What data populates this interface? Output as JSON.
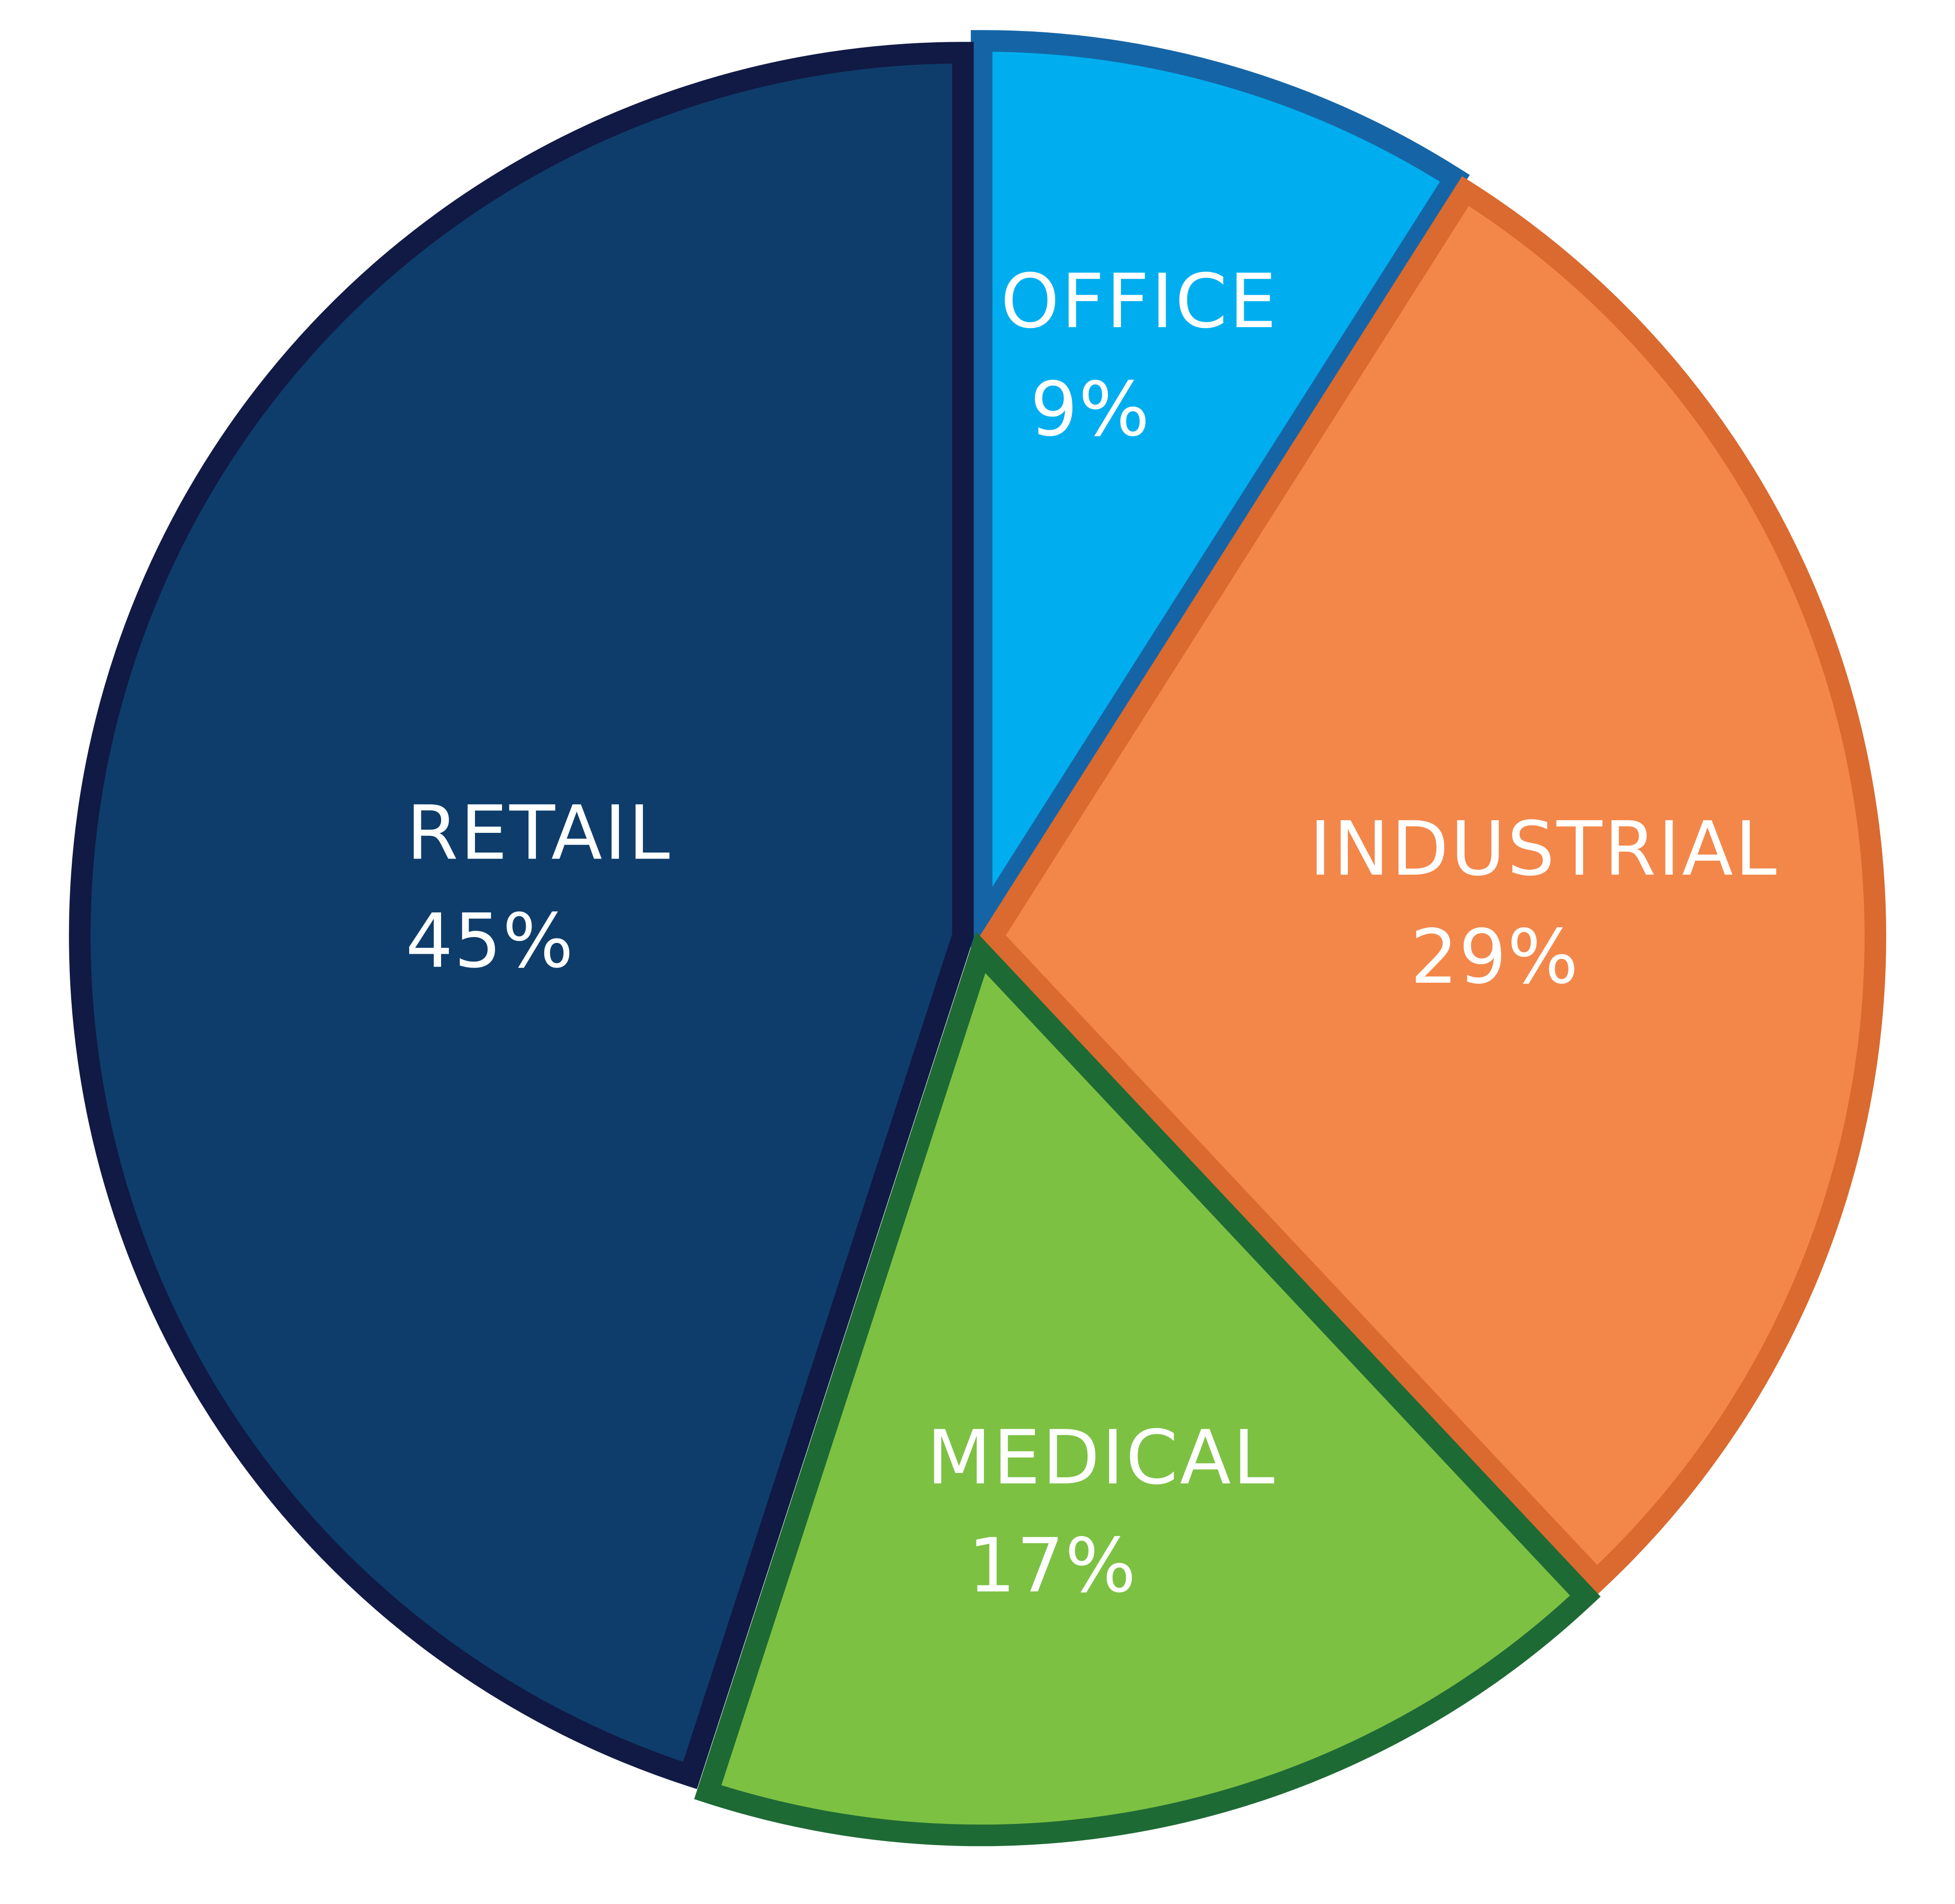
{
  "chart_data": {
    "type": "pie",
    "title": "",
    "categories": [
      "OFFICE",
      "INDUSTRIAL",
      "MEDICAL",
      "RETAIL"
    ],
    "values": [
      9,
      29,
      17,
      45
    ],
    "value_labels": [
      "9%",
      "29%",
      "17%",
      "45%"
    ],
    "unit": "%",
    "start_angle_deg": 0,
    "direction": "clockwise",
    "exploded": true,
    "legend": "none",
    "colors": {
      "OFFICE": {
        "fill": "#00AEEF",
        "stroke": "#1565A6"
      },
      "INDUSTRIAL": {
        "fill": "#F3874A",
        "stroke": "#DA6A2F"
      },
      "MEDICAL": {
        "fill": "#7DC143",
        "stroke": "#1E6A35"
      },
      "RETAIL": {
        "fill": "#0E3D6B",
        "stroke": "#111A44"
      }
    }
  }
}
